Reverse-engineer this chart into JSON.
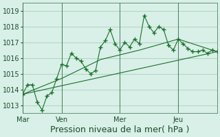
{
  "background_color": "#d8f0e8",
  "grid_color": "#a0c8b0",
  "line_color": "#1a6e2a",
  "xlabel": "Pression niveau de la mer( hPa )",
  "xlabel_fontsize": 9,
  "tick_fontsize": 7,
  "ylim": [
    1012.5,
    1019.5
  ],
  "yticks": [
    1013,
    1014,
    1015,
    1016,
    1017,
    1018,
    1019
  ],
  "day_labels": [
    "Mar",
    "Ven",
    "Mer",
    "Jeu"
  ],
  "day_positions": [
    0,
    48,
    120,
    192
  ],
  "xlim": [
    0,
    240
  ],
  "line1_x": [
    0,
    6,
    12,
    18,
    24,
    30,
    36,
    42,
    48,
    54,
    60,
    66,
    72,
    78,
    84,
    90,
    96,
    102,
    108,
    114,
    120,
    126,
    132,
    138,
    144,
    150,
    156,
    162,
    168,
    174,
    180,
    186,
    192,
    198,
    204,
    210,
    216,
    222,
    228,
    234,
    240
  ],
  "line1_y": [
    1013.7,
    1014.3,
    1014.3,
    1013.2,
    1012.7,
    1013.6,
    1013.8,
    1014.7,
    1015.6,
    1015.5,
    1016.3,
    1016.0,
    1015.8,
    1015.3,
    1015.0,
    1015.2,
    1016.7,
    1017.1,
    1017.8,
    1016.9,
    1016.5,
    1017.0,
    1016.7,
    1017.2,
    1016.9,
    1018.7,
    1018.0,
    1017.6,
    1018.0,
    1017.8,
    1016.8,
    1016.5,
    1017.2,
    1016.9,
    1016.6,
    1016.4,
    1016.4,
    1016.5,
    1016.3,
    1016.5,
    1016.4
  ],
  "line2_x": [
    0,
    48,
    96,
    144,
    192,
    240
  ],
  "line2_y": [
    1013.7,
    1014.7,
    1015.9,
    1016.5,
    1017.2,
    1016.4
  ],
  "line3_x": [
    0,
    240
  ],
  "line3_y": [
    1013.7,
    1016.4
  ]
}
